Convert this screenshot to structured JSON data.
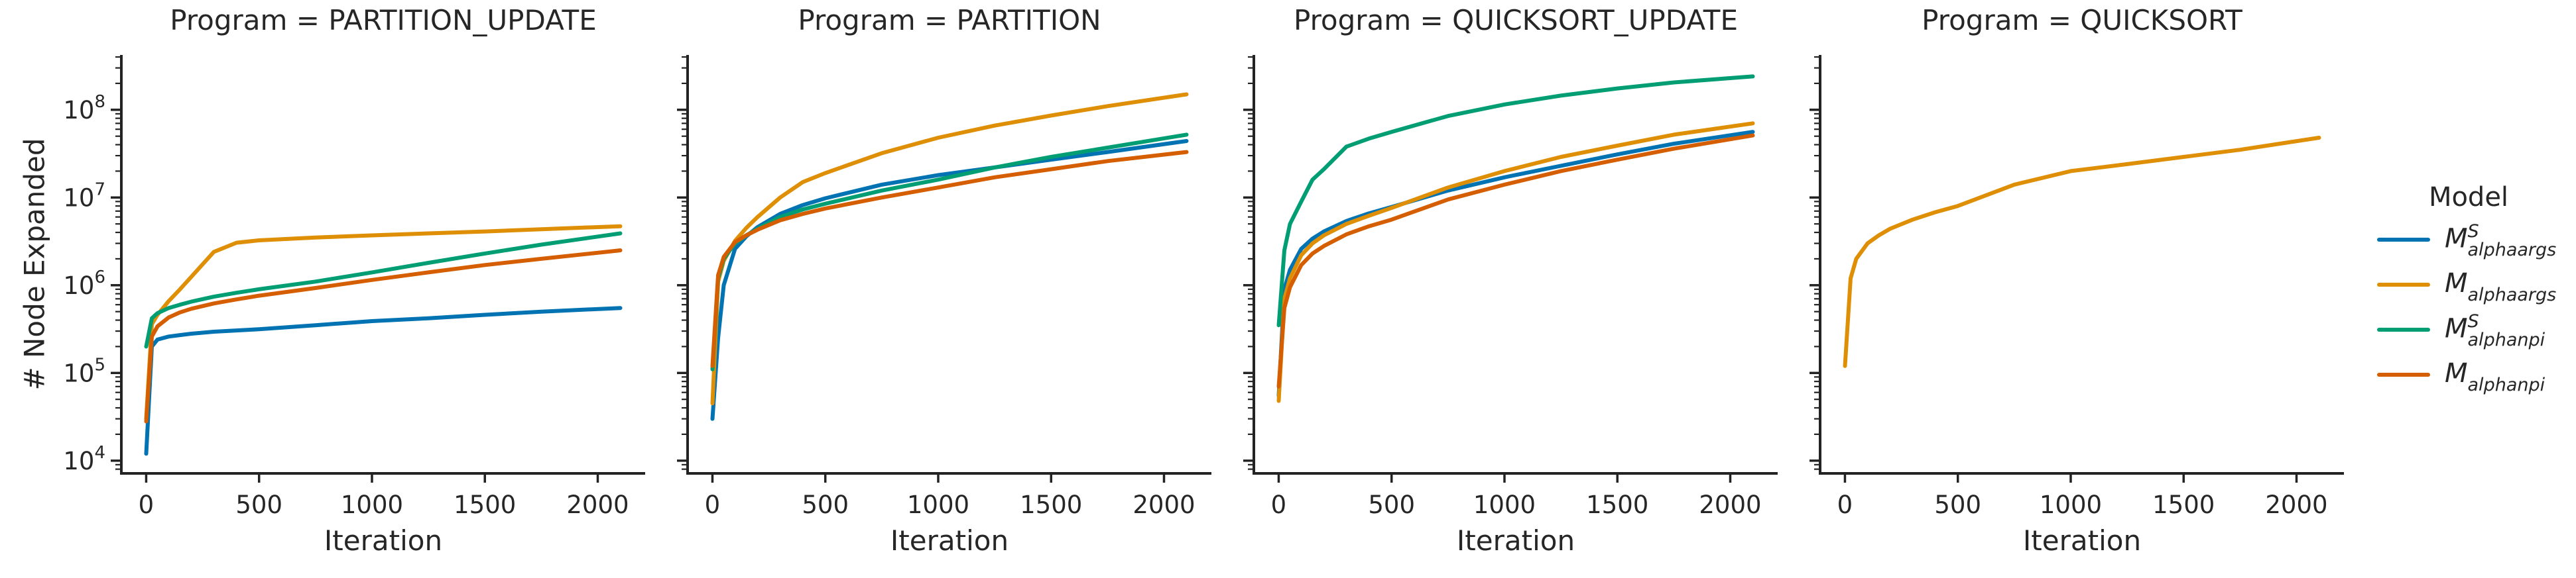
{
  "figure_title": "",
  "axes": {
    "xlabel": "Iteration",
    "ylabel": "# Node Expanded",
    "x_ticks": [
      0,
      500,
      1000,
      1500,
      2000
    ],
    "y_tick_exponents": [
      4,
      5,
      6,
      7,
      8
    ],
    "y_scale": "log",
    "grid": "off",
    "xlim": [
      -110,
      2210
    ],
    "ylim_log10": [
      3.855,
      8.625
    ],
    "iterations": [
      0,
      25,
      50,
      100,
      150,
      200,
      300,
      400,
      500,
      750,
      1000,
      1250,
      1500,
      1750,
      2100
    ]
  },
  "colors": {
    "blue": "#0173b2",
    "orange": "#de8f05",
    "green": "#029e73",
    "dark_orange": "#d55e00",
    "text": "#262626"
  },
  "legend": {
    "title": "Model",
    "items": [
      {
        "label_main": "M",
        "label_sup": "S",
        "label_sub": "alphaargs",
        "color": "#0173b2"
      },
      {
        "label_main": "M",
        "label_sup": "",
        "label_sub": "alphaargs",
        "color": "#de8f05"
      },
      {
        "label_main": "M",
        "label_sup": "S",
        "label_sub": "alphanpi",
        "color": "#029e73"
      },
      {
        "label_main": "M",
        "label_sup": "",
        "label_sub": "alphanpi",
        "color": "#d55e00"
      }
    ]
  },
  "chart_data": [
    {
      "type": "line",
      "title": "Program = PARTITION_UPDATE",
      "xlabel": "Iteration",
      "series": [
        {
          "model": "M^S_alphaargs",
          "color": "#0173b2",
          "values": [
            12000,
            200000,
            240000,
            260000,
            270000,
            280000,
            295000,
            305000,
            315000,
            350000,
            390000,
            420000,
            460000,
            500000,
            550000
          ]
        },
        {
          "model": "M_alphaargs",
          "color": "#de8f05",
          "values": [
            30000,
            360000,
            460000,
            660000,
            900000,
            1250000,
            2400000,
            3050000,
            3250000,
            3500000,
            3700000,
            3900000,
            4100000,
            4350000,
            4700000
          ]
        },
        {
          "model": "M^S_alphanpi",
          "color": "#029e73",
          "values": [
            200000,
            420000,
            480000,
            550000,
            600000,
            650000,
            740000,
            820000,
            900000,
            1100000,
            1400000,
            1800000,
            2300000,
            2900000,
            3900000
          ]
        },
        {
          "model": "M_alphanpi",
          "color": "#d55e00",
          "values": [
            28000,
            260000,
            340000,
            430000,
            490000,
            540000,
            620000,
            690000,
            760000,
            930000,
            1150000,
            1400000,
            1700000,
            2000000,
            2500000
          ]
        }
      ]
    },
    {
      "type": "line",
      "title": "Program = PARTITION",
      "xlabel": "Iteration",
      "series": [
        {
          "model": "M^S_alphaargs",
          "color": "#0173b2",
          "values": [
            30000,
            250000,
            1000000,
            2600000,
            3600000,
            4600000,
            6500000,
            8200000,
            9800000,
            14000000,
            18000000,
            22000000,
            27000000,
            33000000,
            44000000
          ]
        },
        {
          "model": "M_alphaargs",
          "color": "#de8f05",
          "values": [
            45000,
            1100000,
            1900000,
            3200000,
            4500000,
            6000000,
            10000000,
            15000000,
            19000000,
            32000000,
            48000000,
            66000000,
            86000000,
            110000000,
            150000000
          ]
        },
        {
          "model": "M^S_alphanpi",
          "color": "#029e73",
          "values": [
            110000,
            1200000,
            2000000,
            3000000,
            3700000,
            4400000,
            6000000,
            7300000,
            8500000,
            12000000,
            16000000,
            22000000,
            29000000,
            37000000,
            52000000
          ]
        },
        {
          "model": "M_alphanpi",
          "color": "#d55e00",
          "values": [
            120000,
            1300000,
            2100000,
            3100000,
            3700000,
            4300000,
            5500000,
            6500000,
            7500000,
            10000000,
            13000000,
            17000000,
            21000000,
            26000000,
            33000000
          ]
        }
      ]
    },
    {
      "type": "line",
      "title": "Program = QUICKSORT_UPDATE",
      "xlabel": "Iteration",
      "series": [
        {
          "model": "M^S_alphaargs",
          "color": "#0173b2",
          "values": [
            55000,
            900000,
            1500000,
            2600000,
            3400000,
            4100000,
            5400000,
            6600000,
            7800000,
            12000000,
            17000000,
            23000000,
            31000000,
            41000000,
            56000000
          ]
        },
        {
          "model": "M_alphaargs",
          "color": "#de8f05",
          "values": [
            48000,
            700000,
            1200000,
            2200000,
            3000000,
            3700000,
            5000000,
            6200000,
            7600000,
            13000000,
            20000000,
            29000000,
            39000000,
            52000000,
            70000000
          ]
        },
        {
          "model": "M^S_alphanpi",
          "color": "#029e73",
          "values": [
            350000,
            2500000,
            5000000,
            9000000,
            16000000,
            21000000,
            38000000,
            47000000,
            56000000,
            85000000,
            115000000,
            145000000,
            175000000,
            205000000,
            240000000
          ]
        },
        {
          "model": "M_alphanpi",
          "color": "#d55e00",
          "values": [
            70000,
            550000,
            950000,
            1700000,
            2300000,
            2800000,
            3800000,
            4700000,
            5600000,
            9500000,
            14000000,
            20000000,
            27000000,
            36000000,
            51000000
          ]
        }
      ]
    },
    {
      "type": "line",
      "title": "Program = QUICKSORT",
      "xlabel": "Iteration",
      "series": [
        {
          "model": "M_alphaargs",
          "color": "#de8f05",
          "values": [
            120000,
            1200000,
            2000000,
            3000000,
            3700000,
            4400000,
            5600000,
            6800000,
            8000000,
            14000000,
            20000000,
            24000000,
            29000000,
            35000000,
            48000000
          ]
        }
      ]
    }
  ]
}
